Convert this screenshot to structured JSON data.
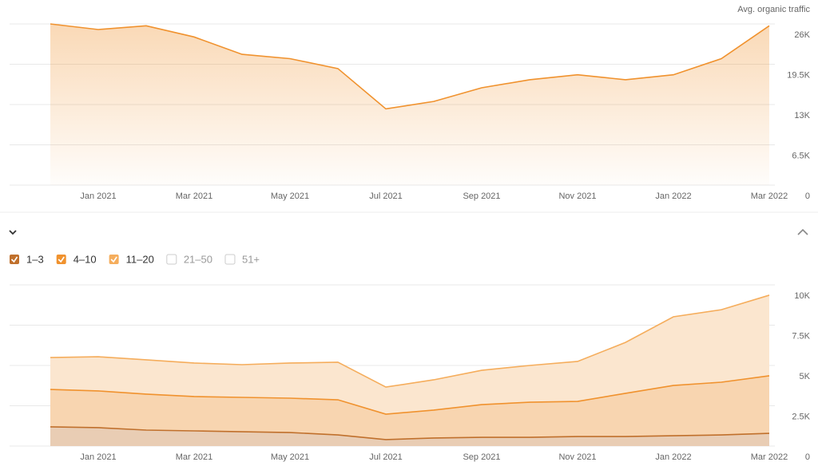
{
  "chart_data": [
    {
      "type": "area",
      "y_label": "Avg. organic traffic",
      "categories": [
        null,
        "Jan 2021",
        null,
        "Mar 2021",
        null,
        "May 2021",
        null,
        "Jul 2021",
        null,
        "Sep 2021",
        null,
        "Nov 2021",
        null,
        "Jan 2022",
        null,
        "Mar 2022"
      ],
      "series": [
        {
          "name": "Avg. organic traffic",
          "color": "#f0922e",
          "values": [
            26000,
            25100,
            25700,
            23900,
            21100,
            20400,
            18800,
            12300,
            13500,
            15700,
            17000,
            17800,
            17000,
            17800,
            20400,
            25700
          ]
        }
      ],
      "ylim": [
        0,
        26000
      ],
      "yticks": [
        0,
        {
          "value": 6500,
          "label": "6.5K"
        },
        {
          "value": 13000,
          "label": "13K"
        },
        {
          "value": 19500,
          "label": "19.5K"
        },
        {
          "value": 26000,
          "label": "26K"
        }
      ],
      "grid": true,
      "stacked": false
    },
    {
      "type": "area",
      "categories": [
        null,
        "Jan 2021",
        null,
        "Mar 2021",
        null,
        "May 2021",
        null,
        "Jul 2021",
        null,
        "Sep 2021",
        null,
        "Nov 2021",
        null,
        "Jan 2022",
        null,
        "Mar 2022"
      ],
      "series": [
        {
          "name": "1–3",
          "color": "#c0702c",
          "values": [
            1190,
            1140,
            990,
            940,
            890,
            840,
            690,
            400,
            500,
            540,
            540,
            590,
            590,
            640,
            690,
            790
          ]
        },
        {
          "name": "4–10",
          "color": "#f0922e",
          "values": [
            2320,
            2280,
            2230,
            2130,
            2130,
            2130,
            2180,
            1580,
            1730,
            2030,
            2180,
            2180,
            2680,
            3120,
            3270,
            3570
          ]
        },
        {
          "name": "11–20",
          "color": "#f5ad5c",
          "values": [
            1980,
            2120,
            2130,
            2080,
            2030,
            2180,
            2330,
            1680,
            1880,
            2130,
            2280,
            2480,
            3160,
            4260,
            4500,
            5000
          ]
        }
      ],
      "legend_unchecked": [
        "21–50",
        "51+"
      ],
      "ylim": [
        0,
        10000
      ],
      "yticks": [
        0,
        {
          "value": 2500,
          "label": "2.5K"
        },
        {
          "value": 5000,
          "label": "5K"
        },
        {
          "value": 7500,
          "label": "7.5K"
        },
        {
          "value": 10000,
          "label": "10K"
        }
      ],
      "grid": true,
      "stacked": true
    }
  ]
}
